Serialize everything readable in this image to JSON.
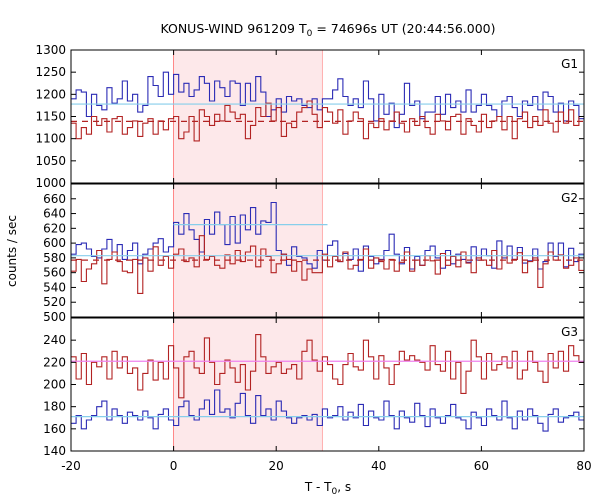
{
  "chart_data": {
    "type": "line",
    "title_prefix": "KONUS-WIND 961209 T",
    "title_sub": "0",
    "title_suffix": " = 74696s UT (20:44:56.000)",
    "xlabel_prefix": "T - T",
    "xlabel_sub": "0",
    "xlabel_suffix": ", s",
    "ylabel": "counts / sec",
    "xlim": [
      -20,
      80
    ],
    "x_ticks": [
      -20,
      0,
      20,
      40,
      60,
      80
    ],
    "shaded_interval": [
      0,
      29
    ],
    "shade_color": "#fde8ea",
    "bin_width": 1,
    "panels": [
      {
        "label": "G1",
        "ylim": [
          1000,
          1300
        ],
        "y_ticks": [
          1000,
          1050,
          1100,
          1150,
          1200,
          1250,
          1300
        ],
        "series": [
          {
            "color": "#2b2bb5",
            "x_start": -20,
            "values": [
              1190,
              1210,
              1205,
              1150,
              1200,
              1175,
              1165,
              1215,
              1180,
              1190,
              1230,
              1185,
              1200,
              1160,
              1175,
              1240,
              1220,
              1195,
              1250,
              1200,
              1245,
              1205,
              1225,
              1195,
              1210,
              1240,
              1225,
              1185,
              1230,
              1215,
              1195,
              1230,
              1225,
              1175,
              1225,
              1185,
              1240,
              1205,
              1150,
              1165,
              1190,
              1160,
              1195,
              1185,
              1190,
              1175,
              1170,
              1190,
              1165,
              1190,
              1190,
              1210,
              1235,
              1195,
              1175,
              1190,
              1170,
              1230,
              1190,
              1140,
              1200,
              1155,
              1180,
              1125,
              1155,
              1225,
              1175,
              1185,
              1145,
              1160,
              1160,
              1195,
              1155,
              1200,
              1170,
              1185,
              1160,
              1210,
              1160,
              1175,
              1200,
              1175,
              1165,
              1150,
              1185,
              1195,
              1170,
              1150,
              1185,
              1175,
              1195,
              1165,
              1205,
              1195,
              1160,
              1180,
              1140,
              1185,
              1175,
              1145
            ]
          },
          {
            "color": "#b22222",
            "x_start": -20,
            "values": [
              1135,
              1100,
              1125,
              1110,
              1150,
              1130,
              1145,
              1115,
              1145,
              1150,
              1110,
              1125,
              1140,
              1105,
              1135,
              1145,
              1110,
              1140,
              1120,
              1145,
              1150,
              1100,
              1115,
              1150,
              1095,
              1165,
              1150,
              1130,
              1155,
              1140,
              1175,
              1160,
              1145,
              1155,
              1100,
              1130,
              1170,
              1150,
              1180,
              1140,
              1170,
              1105,
              1135,
              1125,
              1160,
              1170,
              1185,
              1155,
              1125,
              1170,
              1160,
              1135,
              1165,
              1110,
              1140,
              1160,
              1145,
              1100,
              1135,
              1125,
              1145,
              1120,
              1140,
              1160,
              1135,
              1115,
              1145,
              1130,
              1150,
              1125,
              1110,
              1155,
              1140,
              1120,
              1150,
              1155,
              1110,
              1145,
              1130,
              1115,
              1155,
              1125,
              1140,
              1150,
              1120,
              1150,
              1100,
              1145,
              1160,
              1125,
              1150,
              1130,
              1165,
              1135,
              1115,
              1160,
              1135,
              1165,
              1130,
              1150
            ]
          }
        ],
        "levels": [
          {
            "value": 1178,
            "color": "#87ceeb",
            "dashed": false
          },
          {
            "value": 1139,
            "color": "#b22222",
            "dashed": true
          }
        ]
      },
      {
        "label": "G2",
        "ylim": [
          500,
          680
        ],
        "y_ticks": [
          500,
          520,
          540,
          560,
          580,
          600,
          620,
          640,
          660
        ],
        "series": [
          {
            "color": "#2b2bb5",
            "x_start": -20,
            "values": [
              585,
              598,
              600,
              592,
              582,
              580,
              592,
              605,
              588,
              598,
              578,
              590,
              600,
              572,
              585,
              592,
              600,
              606,
              588,
              595,
              628,
              612,
              640,
              618,
              605,
              588,
              632,
              612,
              642,
              625,
              598,
              636,
              600,
              638,
              618,
              648,
              612,
              630,
              628,
              655,
              590,
              585,
              570,
              595,
              582,
              580,
              572,
              566,
              590,
              577,
              597,
              603,
              575,
              586,
              578,
              592,
              562,
              596,
              582,
              572,
              578,
              590,
              612,
              585,
              572,
              594,
              565,
              582,
              570,
              590,
              596,
              580,
              566,
              590,
              572,
              585,
              578,
              574,
              595,
              577,
              592,
              583,
              566,
              603,
              580,
              596,
              578,
              594,
              573,
              576,
              592,
              565,
              575,
              600,
              582,
              600,
              568,
              593,
              575,
              585
            ]
          },
          {
            "color": "#b22222",
            "x_start": -20,
            "values": [
              562,
              578,
              548,
              565,
              572,
              590,
              545,
              578,
              588,
              575,
              562,
              560,
              578,
              532,
              580,
              562,
              595,
              570,
              582,
              566,
              585,
              592,
              575,
              580,
              568,
              610,
              578,
              582,
              570,
              566,
              584,
              572,
              590,
              575,
              588,
              596,
              568,
              592,
              582,
              560,
              572,
              585,
              578,
              562,
              575,
              550,
              565,
              560,
              560,
              585,
              568,
              582,
              575,
              588,
              565,
              570,
              578,
              592,
              566,
              580,
              575,
              565,
              578,
              562,
              574,
              588,
              562,
              577,
              570,
              583,
              576,
              558,
              586,
              570,
              582,
              568,
              588,
              573,
              560,
              580,
              577,
              570,
              590,
              565,
              583,
              573,
              578,
              587,
              560,
              575,
              580,
              540,
              572,
              588,
              577,
              584,
              566,
              570,
              580,
              563
            ]
          }
        ],
        "levels": [
          {
            "value": 583,
            "color": "#87ceeb",
            "dashed": false
          },
          {
            "value": 625,
            "color": "#87ceeb",
            "dashed": false,
            "from": 0,
            "to": 30
          },
          {
            "value": 577,
            "color": "#b22222",
            "dashed": true
          }
        ]
      },
      {
        "label": "G3",
        "ylim": [
          140,
          260
        ],
        "y_ticks": [
          140,
          160,
          180,
          200,
          220,
          240
        ],
        "series": [
          {
            "color": "#b22222",
            "x_start": -20,
            "values": [
              225,
              205,
              228,
              200,
              220,
              216,
              225,
              205,
              230,
              215,
              225,
              210,
              215,
              195,
              210,
              222,
              204,
              220,
              205,
              235,
              215,
              188,
              225,
              230,
              215,
              210,
              242,
              220,
              200,
              210,
              222,
              215,
              202,
              218,
              195,
              212,
              245,
              225,
              210,
              216,
              220,
              210,
              214,
              218,
              205,
              230,
              240,
              222,
              212,
              225,
              218,
              205,
              200,
              218,
              228,
              216,
              213,
              240,
              225,
              205,
              226,
              215,
              200,
              218,
              230,
              222,
              226,
              222,
              220,
              213,
              235,
              218,
              212,
              230,
              205,
              220,
              192,
              212,
              240,
              225,
              205,
              228,
              213,
              218,
              225,
              215,
              230,
              205,
              213,
              230,
              220,
              212,
              202,
              228,
              215,
              230,
              212,
              235,
              226,
              220
            ]
          },
          {
            "color": "#2b2bb5",
            "x_start": -20,
            "values": [
              165,
              172,
              160,
              168,
              172,
              180,
              185,
              168,
              178,
              172,
              165,
              175,
              172,
              168,
              176,
              170,
              160,
              173,
              178,
              168,
              163,
              180,
              185,
              172,
              168,
              178,
              186,
              173,
              195,
              175,
              178,
              170,
              183,
              192,
              172,
              165,
              190,
              172,
              178,
              168,
              185,
              176,
              170,
              165,
              170,
              172,
              168,
              173,
              163,
              178,
              170,
              172,
              180,
              168,
              175,
              170,
              182,
              163,
              176,
              170,
              168,
              185,
              172,
              160,
              176,
              170,
              166,
              183,
              172,
              162,
              178,
              170,
              165,
              172,
              182,
              170,
              168,
              160,
              175,
              170,
              163,
              178,
              172,
              168,
              185,
              170,
              160,
              176,
              168,
              178,
              172,
              165,
              158,
              173,
              178,
              166,
              170,
              172,
              175,
              168
            ]
          }
        ],
        "levels": [
          {
            "value": 221,
            "color": "#ee82ee",
            "dashed": false
          },
          {
            "value": 171,
            "color": "#87ceeb",
            "dashed": false
          }
        ]
      }
    ]
  }
}
